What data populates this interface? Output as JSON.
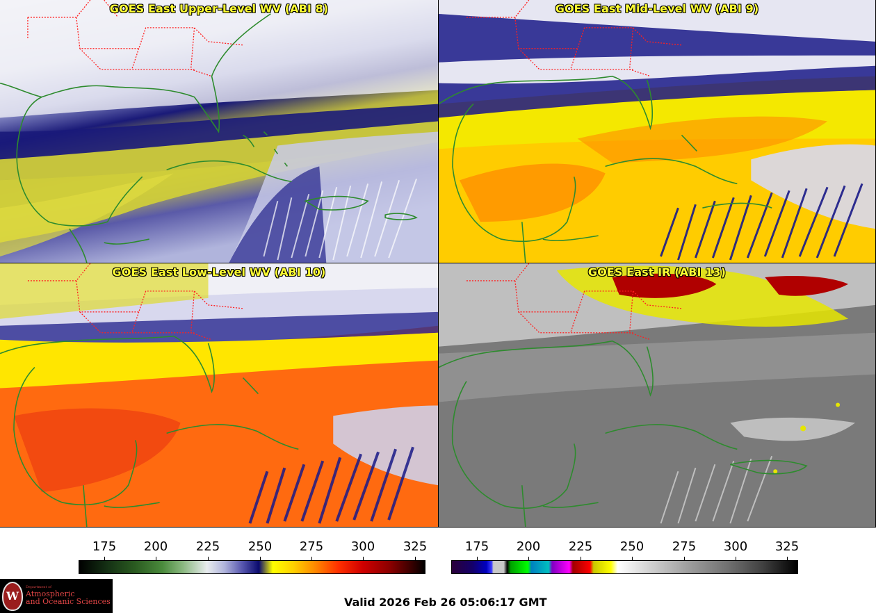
{
  "panels": [
    {
      "title": "GOES East Upper-Level WV (ABI 8)"
    },
    {
      "title": "GOES East Mid-Level WV (ABI 9)"
    },
    {
      "title": "GOES East Low-Level WV (ABI 10)"
    },
    {
      "title": "GOES East IR (ABI 13)"
    }
  ],
  "colorbars": {
    "left": {
      "ticks": [
        "175",
        "200",
        "225",
        "250",
        "275",
        "300",
        "325"
      ]
    },
    "right": {
      "ticks": [
        "175",
        "200",
        "225",
        "250",
        "275",
        "300",
        "325"
      ]
    }
  },
  "footer": {
    "valid": "Valid 2026 Feb 26 05:06:17 GMT",
    "logo": {
      "seal": "W",
      "dept": "Department of",
      "line1": "Atmospheric",
      "line2": "and Oceanic Sciences"
    }
  },
  "colors": {
    "title": "#ffff33",
    "coast": "#2e8b2e",
    "state_border": "#ff2020"
  }
}
